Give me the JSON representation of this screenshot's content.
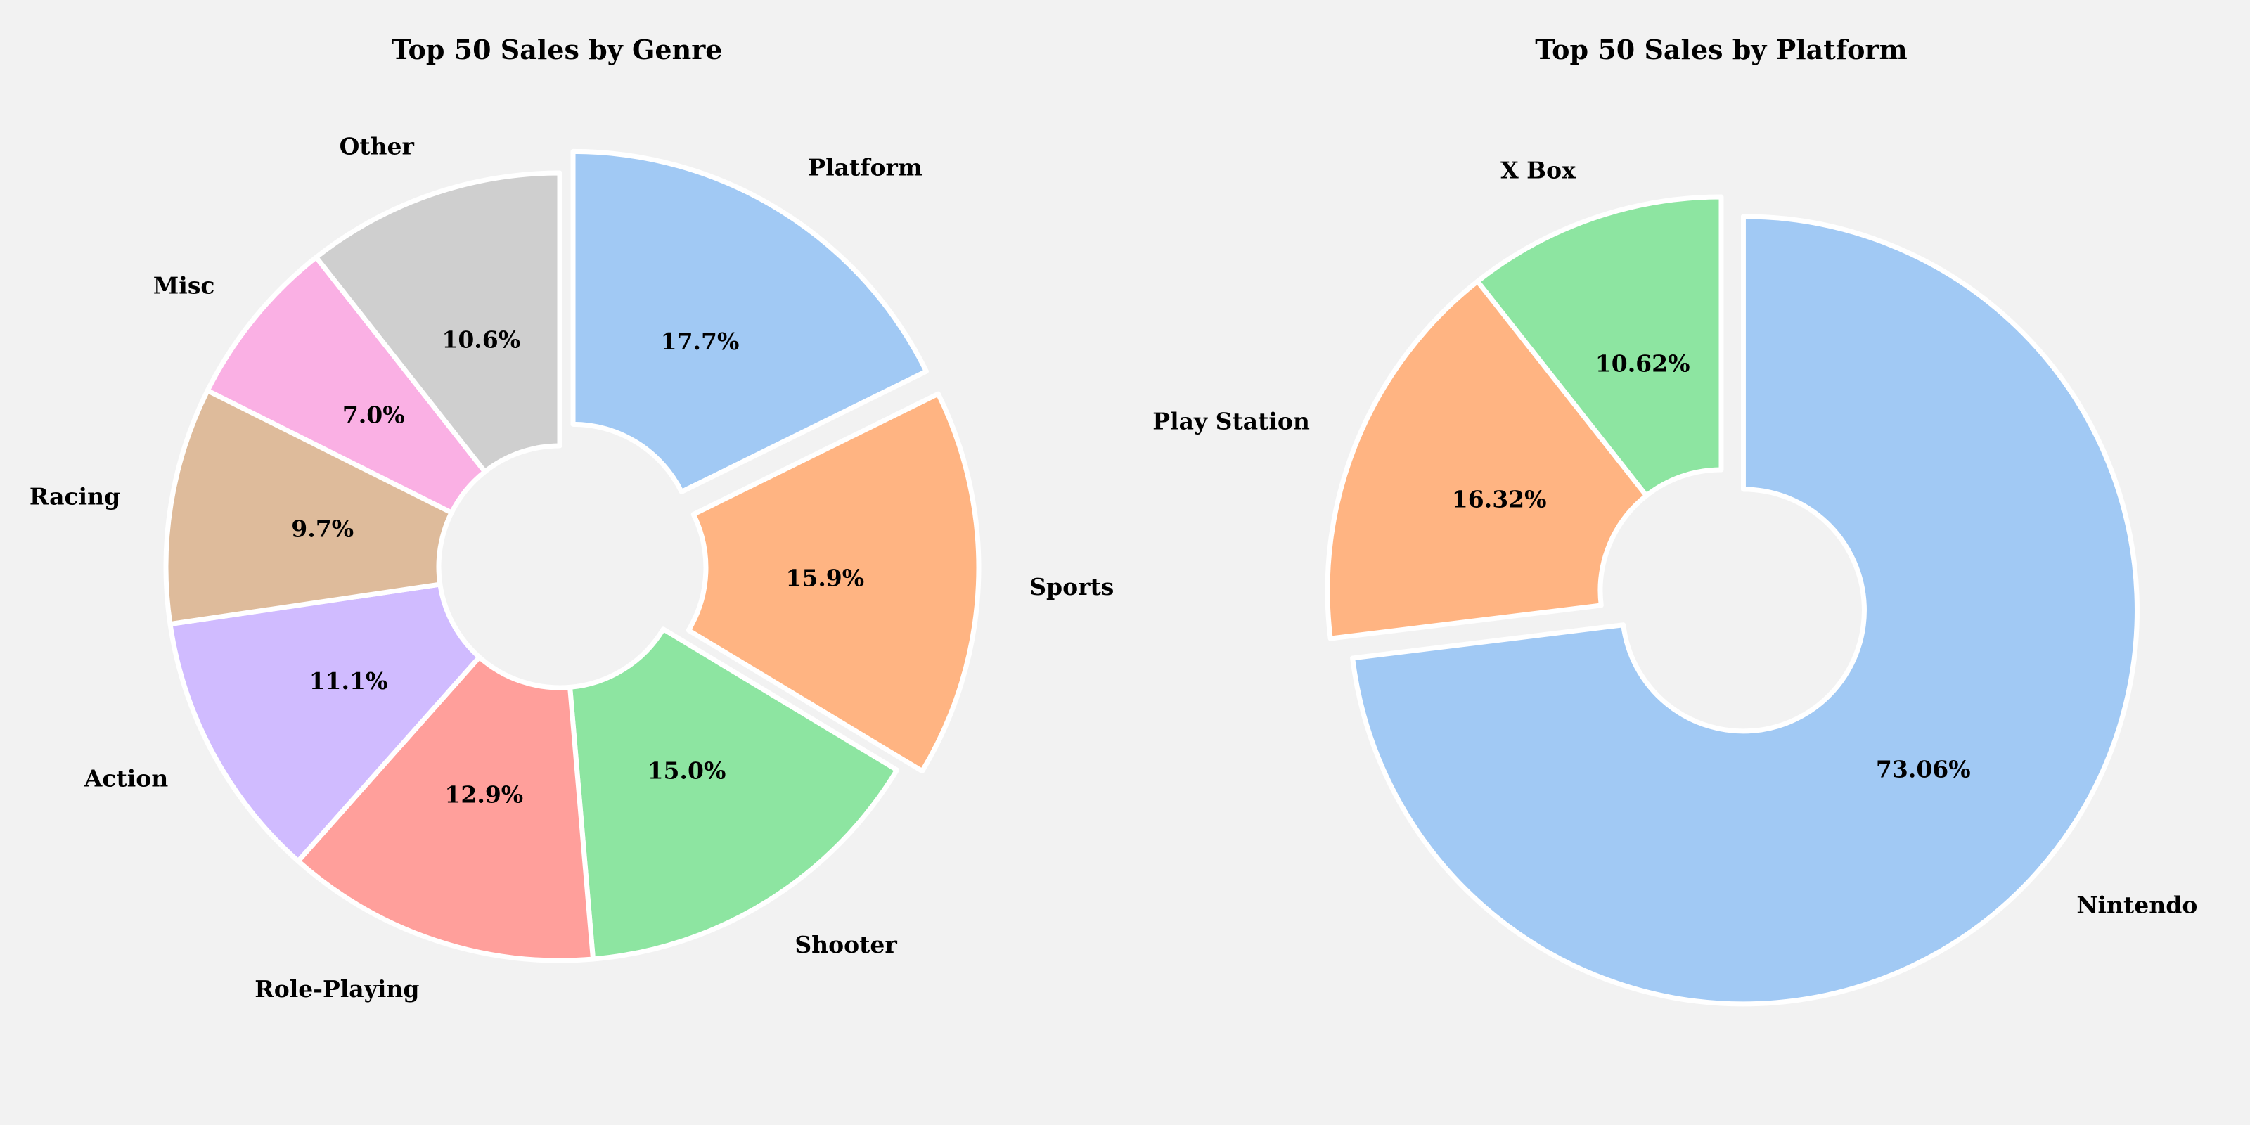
{
  "chart_data": [
    {
      "type": "pie",
      "variant": "donut",
      "title": "Top 50 Sales by Genre",
      "start": "top, clockwise",
      "categories": [
        "Platform",
        "Sports",
        "Shooter",
        "Role-Playing",
        "Action",
        "Racing",
        "Misc",
        "Other"
      ],
      "values": [
        17.7,
        15.9,
        15.0,
        12.9,
        11.1,
        9.7,
        7.0,
        10.6
      ],
      "value_labels": [
        "17.7%",
        "15.9%",
        "15.0%",
        "12.9%",
        "11.1%",
        "9.7%",
        "7.0%",
        "10.6%"
      ],
      "exploded": [
        "Platform",
        "Sports"
      ],
      "colors": [
        "#a1c9f4",
        "#ffb482",
        "#8de5a1",
        "#ff9f9b",
        "#d0bbff",
        "#debb9b",
        "#fab0e4",
        "#cfcfcf"
      ]
    },
    {
      "type": "pie",
      "variant": "donut",
      "title": "Top 50 Sales by Platform",
      "start": "top, clockwise",
      "categories": [
        "Nintendo",
        "Play Station",
        "X Box"
      ],
      "values": [
        73.06,
        16.32,
        10.62
      ],
      "value_labels": [
        "73.06%",
        "16.32%",
        "10.62%"
      ],
      "exploded": [
        "Nintendo"
      ],
      "colors": [
        "#a1c9f4",
        "#ffb482",
        "#8de5a1"
      ]
    }
  ]
}
